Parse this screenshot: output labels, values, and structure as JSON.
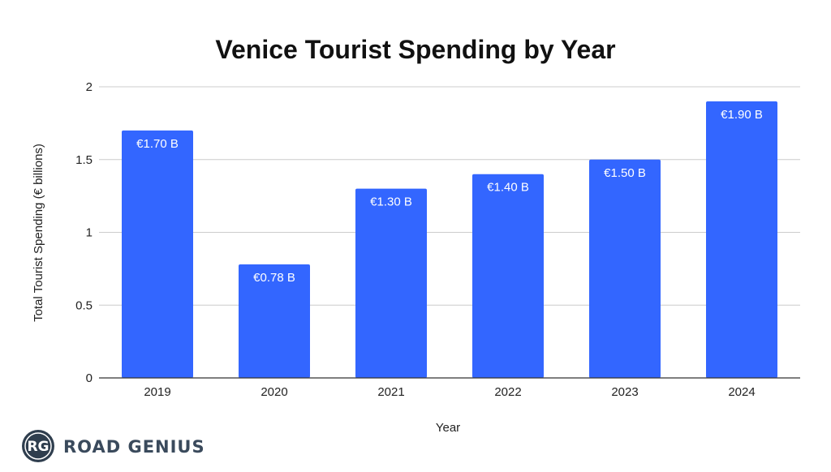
{
  "chart_data": {
    "type": "bar",
    "title": "Venice Tourist Spending by Year",
    "xlabel": "Year",
    "ylabel": "Total Tourist Spending (€ billions)",
    "categories": [
      "2019",
      "2020",
      "2021",
      "2022",
      "2023",
      "2024"
    ],
    "values": [
      1.7,
      0.78,
      1.3,
      1.4,
      1.5,
      1.9
    ],
    "data_labels": [
      "€1.70 B",
      "€0.78 B",
      "€1.30 B",
      "€1.40 B",
      "€1.50 B",
      "€1.90 B"
    ],
    "ylim": [
      0,
      2
    ],
    "yticks": [
      "0",
      "0.5",
      "1",
      "1.5",
      "2"
    ],
    "ytick_values": [
      0,
      0.5,
      1,
      1.5,
      2
    ],
    "grid": true,
    "bar_color": "#3366ff",
    "grid_color": "#cccccc"
  },
  "logo": {
    "monogram": "RG",
    "text": "ROAD GENIUS",
    "color": "#2f3e4e"
  }
}
